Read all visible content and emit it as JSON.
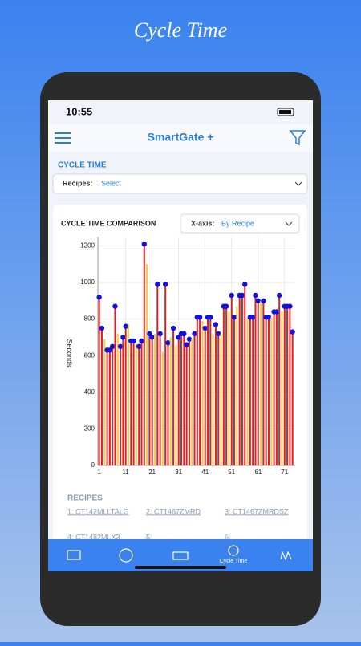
{
  "banner_title": "Cycle Time",
  "status_time": "10:55",
  "app_title": "SmartGate +",
  "section_title": "CYCLE TIME",
  "recipes_select": {
    "label": "Recipes:",
    "value": "Select"
  },
  "chart": {
    "type": "bar",
    "title": "CYCLE TIME COMPARISON",
    "xaxis_select": {
      "label": "X-axis:",
      "value": "By Recipe"
    },
    "y_label": "Seconds",
    "ylim": [
      0,
      1250
    ],
    "yticks": [
      0,
      200,
      400,
      600,
      800,
      1000,
      1200
    ],
    "xlim": [
      0.5,
      75
    ],
    "xticks": [
      1,
      11,
      21,
      31,
      41,
      51,
      61,
      71
    ],
    "grid": true,
    "dot_color": "#1212e0",
    "values": [
      920,
      750,
      690,
      630,
      630,
      650,
      870,
      720,
      650,
      700,
      760,
      770,
      680,
      680,
      670,
      650,
      680,
      1210,
      1100,
      720,
      700,
      720,
      990,
      720,
      620,
      990,
      670,
      700,
      750,
      660,
      700,
      720,
      720,
      660,
      690,
      690,
      720,
      810,
      810,
      790,
      750,
      810,
      810,
      720,
      770,
      720,
      720,
      870,
      870,
      840,
      930,
      810,
      870,
      930,
      930,
      990,
      810,
      810,
      810,
      930,
      900,
      900,
      900,
      810,
      810,
      810,
      840,
      840,
      930,
      840,
      870,
      870,
      870,
      730
    ],
    "bar_colors": [
      "#e02020",
      "#e02020",
      "#f7c948",
      "#e02020",
      "#e02020",
      "#e02020",
      "#e02020",
      "#f7c948",
      "#e02020",
      "#e02020",
      "#e02020",
      "#f7c948",
      "#e02020",
      "#e02020",
      "#f7c948",
      "#e02020",
      "#e02020",
      "#e02020",
      "#f7c948",
      "#e02020",
      "#e02020",
      "#f7c948",
      "#e02020",
      "#e02020",
      "#f7c948",
      "#e02020",
      "#e02020",
      "#f7c948",
      "#e02020",
      "#f7c948",
      "#e02020",
      "#e02020",
      "#e02020",
      "#e02020",
      "#e02020",
      "#f7c948",
      "#e02020",
      "#e02020",
      "#e02020",
      "#f7c948",
      "#e02020",
      "#e02020",
      "#e02020",
      "#f7c948",
      "#e02020",
      "#e02020",
      "#f7c948",
      "#e02020",
      "#e02020",
      "#f7c948",
      "#e02020",
      "#e02020",
      "#f7c948",
      "#e02020",
      "#e02020",
      "#e02020",
      "#f7c948",
      "#e02020",
      "#e02020",
      "#e02020",
      "#e02020",
      "#f7c948",
      "#e02020",
      "#e02020",
      "#e02020",
      "#f7c948",
      "#e02020",
      "#e02020",
      "#e02020",
      "#f7c948",
      "#e02020",
      "#e02020",
      "#e02020",
      "#e02020"
    ]
  },
  "recipes_heading": "RECIPES",
  "recipes": [
    "1: CT142MLLTALG",
    "2: CT1467ZMRD",
    "3: CT1467ZMRDSZ",
    "4: CT1482MLX3",
    "5:",
    "6:"
  ],
  "nav_active": "Cycle Time"
}
